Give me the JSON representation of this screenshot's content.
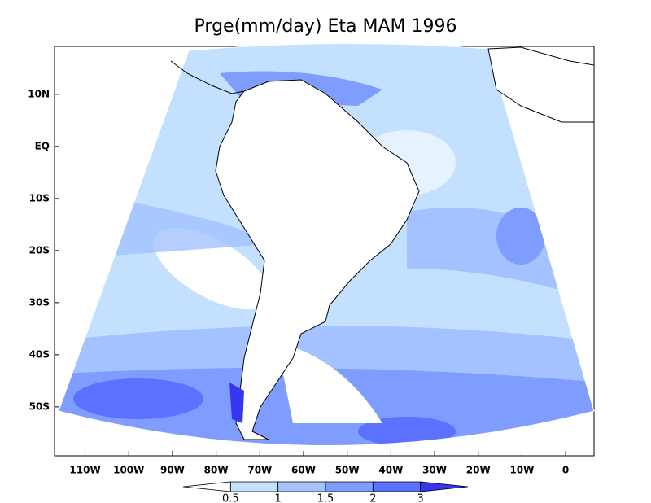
{
  "title": "Prge(mm/day) Eta MAM 1996",
  "map": {
    "lat_lim": [
      -59.4,
      19.2
    ],
    "lon_lim": [
      -117,
      6.5
    ],
    "lat_ticks": [
      {
        "value": 10,
        "label": "10N"
      },
      {
        "value": 0,
        "label": "EQ"
      },
      {
        "value": -10,
        "label": "10S"
      },
      {
        "value": -20,
        "label": "20S"
      },
      {
        "value": -30,
        "label": "30S"
      },
      {
        "value": -40,
        "label": "40S"
      },
      {
        "value": -50,
        "label": "50S"
      }
    ],
    "lon_ticks": [
      {
        "value": -110,
        "label": "110W"
      },
      {
        "value": -100,
        "label": "100W"
      },
      {
        "value": -90,
        "label": "90W"
      },
      {
        "value": -80,
        "label": "80W"
      },
      {
        "value": -70,
        "label": "70W"
      },
      {
        "value": -60,
        "label": "60W"
      },
      {
        "value": -50,
        "label": "50W"
      },
      {
        "value": -40,
        "label": "40W"
      },
      {
        "value": -30,
        "label": "30W"
      },
      {
        "value": -20,
        "label": "20W"
      },
      {
        "value": -10,
        "label": "10W"
      },
      0
    ]
  },
  "colorbar": {
    "levels": [
      0.5,
      1,
      1.5,
      2,
      3
    ],
    "colors": [
      "#ffffff",
      "#c4e0ff",
      "#a3c2ff",
      "#7f9cff",
      "#5a72ff",
      "#3636f0"
    ]
  }
}
